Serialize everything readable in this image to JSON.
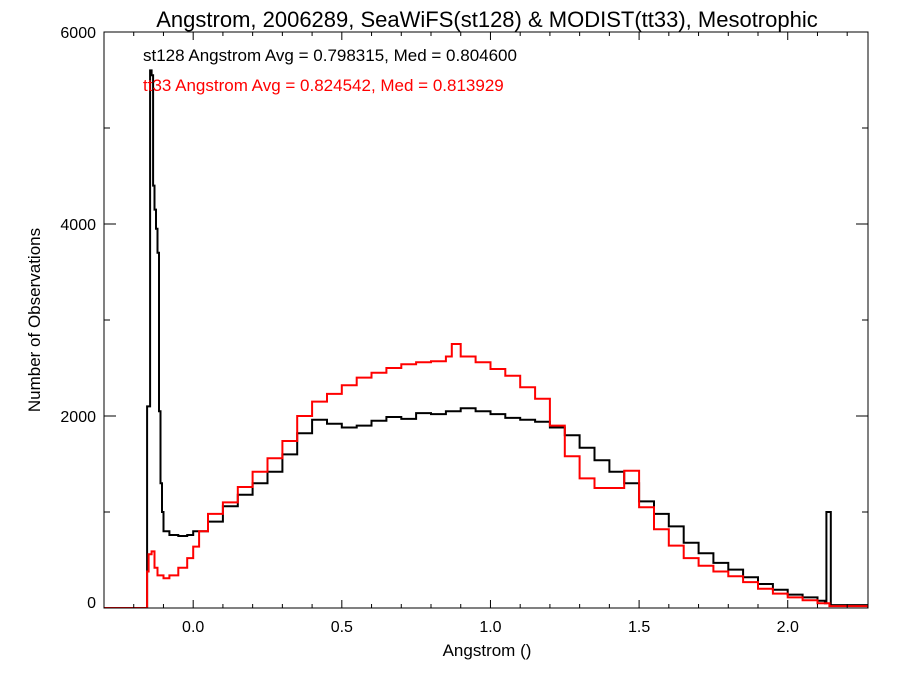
{
  "chart_data": {
    "type": "line",
    "title": "Angstrom, 2006289, SeaWiFS(st128) & MODIST(tt33), Mesotrophic",
    "xlabel": "Angstrom ()",
    "ylabel": "Number of Observations",
    "xlim": [
      -0.3,
      2.27
    ],
    "ylim": [
      0,
      6000
    ],
    "x_ticks": [
      0.0,
      0.5,
      1.0,
      1.5,
      2.0
    ],
    "x_tick_labels": [
      "0.0",
      "0.5",
      "1.0",
      "1.5",
      "2.0"
    ],
    "y_ticks": [
      0,
      2000,
      4000,
      6000
    ],
    "y_tick_labels": [
      "0",
      "2000",
      "4000",
      "6000"
    ],
    "grid": false,
    "annotations": [
      {
        "text": "st128 Angstrom Avg = 0.798315, Med = 0.804600",
        "color": "#000000"
      },
      {
        "text": "tt33 Angstrom Avg = 0.824542, Med = 0.813929",
        "color": "#ff0000"
      }
    ],
    "series": [
      {
        "color": "#000000",
        "points": [
          [
            -0.3,
            0
          ],
          [
            -0.16,
            0
          ],
          [
            -0.155,
            2100
          ],
          [
            -0.145,
            5600
          ],
          [
            -0.14,
            5550
          ],
          [
            -0.135,
            4400
          ],
          [
            -0.13,
            4150
          ],
          [
            -0.125,
            3950
          ],
          [
            -0.12,
            3700
          ],
          [
            -0.115,
            2050
          ],
          [
            -0.11,
            1300
          ],
          [
            -0.105,
            1000
          ],
          [
            -0.1,
            800
          ],
          [
            -0.08,
            760
          ],
          [
            -0.05,
            750
          ],
          [
            -0.02,
            760
          ],
          [
            0.0,
            800
          ],
          [
            0.05,
            900
          ],
          [
            0.1,
            1060
          ],
          [
            0.15,
            1180
          ],
          [
            0.2,
            1300
          ],
          [
            0.25,
            1420
          ],
          [
            0.3,
            1600
          ],
          [
            0.35,
            1820
          ],
          [
            0.4,
            1960
          ],
          [
            0.45,
            1920
          ],
          [
            0.5,
            1880
          ],
          [
            0.55,
            1900
          ],
          [
            0.6,
            1950
          ],
          [
            0.65,
            1990
          ],
          [
            0.7,
            1970
          ],
          [
            0.75,
            2030
          ],
          [
            0.8,
            2020
          ],
          [
            0.85,
            2050
          ],
          [
            0.9,
            2080
          ],
          [
            0.95,
            2050
          ],
          [
            1.0,
            2020
          ],
          [
            1.05,
            1980
          ],
          [
            1.1,
            1960
          ],
          [
            1.15,
            1940
          ],
          [
            1.2,
            1880
          ],
          [
            1.25,
            1800
          ],
          [
            1.3,
            1670
          ],
          [
            1.35,
            1540
          ],
          [
            1.4,
            1420
          ],
          [
            1.45,
            1300
          ],
          [
            1.5,
            1110
          ],
          [
            1.55,
            980
          ],
          [
            1.6,
            850
          ],
          [
            1.65,
            680
          ],
          [
            1.7,
            570
          ],
          [
            1.75,
            470
          ],
          [
            1.8,
            400
          ],
          [
            1.85,
            320
          ],
          [
            1.9,
            250
          ],
          [
            1.95,
            190
          ],
          [
            2.0,
            140
          ],
          [
            2.05,
            110
          ],
          [
            2.1,
            75
          ],
          [
            2.125,
            50
          ],
          [
            2.13,
            1000
          ],
          [
            2.14,
            1000
          ],
          [
            2.145,
            30
          ],
          [
            2.27,
            0
          ]
        ]
      },
      {
        "color": "#ff0000",
        "points": [
          [
            -0.3,
            0
          ],
          [
            -0.16,
            0
          ],
          [
            -0.155,
            380
          ],
          [
            -0.15,
            560
          ],
          [
            -0.14,
            590
          ],
          [
            -0.13,
            420
          ],
          [
            -0.12,
            340
          ],
          [
            -0.1,
            310
          ],
          [
            -0.08,
            340
          ],
          [
            -0.05,
            420
          ],
          [
            -0.02,
            520
          ],
          [
            0.0,
            640
          ],
          [
            0.02,
            800
          ],
          [
            0.05,
            980
          ],
          [
            0.1,
            1100
          ],
          [
            0.15,
            1260
          ],
          [
            0.2,
            1420
          ],
          [
            0.25,
            1560
          ],
          [
            0.3,
            1740
          ],
          [
            0.35,
            2000
          ],
          [
            0.4,
            2150
          ],
          [
            0.45,
            2230
          ],
          [
            0.5,
            2320
          ],
          [
            0.55,
            2400
          ],
          [
            0.6,
            2450
          ],
          [
            0.65,
            2500
          ],
          [
            0.7,
            2540
          ],
          [
            0.75,
            2560
          ],
          [
            0.8,
            2570
          ],
          [
            0.85,
            2620
          ],
          [
            0.87,
            2750
          ],
          [
            0.9,
            2620
          ],
          [
            0.95,
            2560
          ],
          [
            1.0,
            2490
          ],
          [
            1.05,
            2420
          ],
          [
            1.1,
            2300
          ],
          [
            1.15,
            2180
          ],
          [
            1.2,
            1900
          ],
          [
            1.25,
            1580
          ],
          [
            1.3,
            1350
          ],
          [
            1.35,
            1250
          ],
          [
            1.4,
            1250
          ],
          [
            1.45,
            1430
          ],
          [
            1.5,
            1050
          ],
          [
            1.55,
            820
          ],
          [
            1.6,
            650
          ],
          [
            1.65,
            520
          ],
          [
            1.7,
            440
          ],
          [
            1.75,
            380
          ],
          [
            1.8,
            330
          ],
          [
            1.85,
            270
          ],
          [
            1.9,
            200
          ],
          [
            1.95,
            150
          ],
          [
            2.0,
            110
          ],
          [
            2.05,
            80
          ],
          [
            2.1,
            50
          ],
          [
            2.14,
            20
          ],
          [
            2.27,
            0
          ]
        ]
      }
    ]
  }
}
